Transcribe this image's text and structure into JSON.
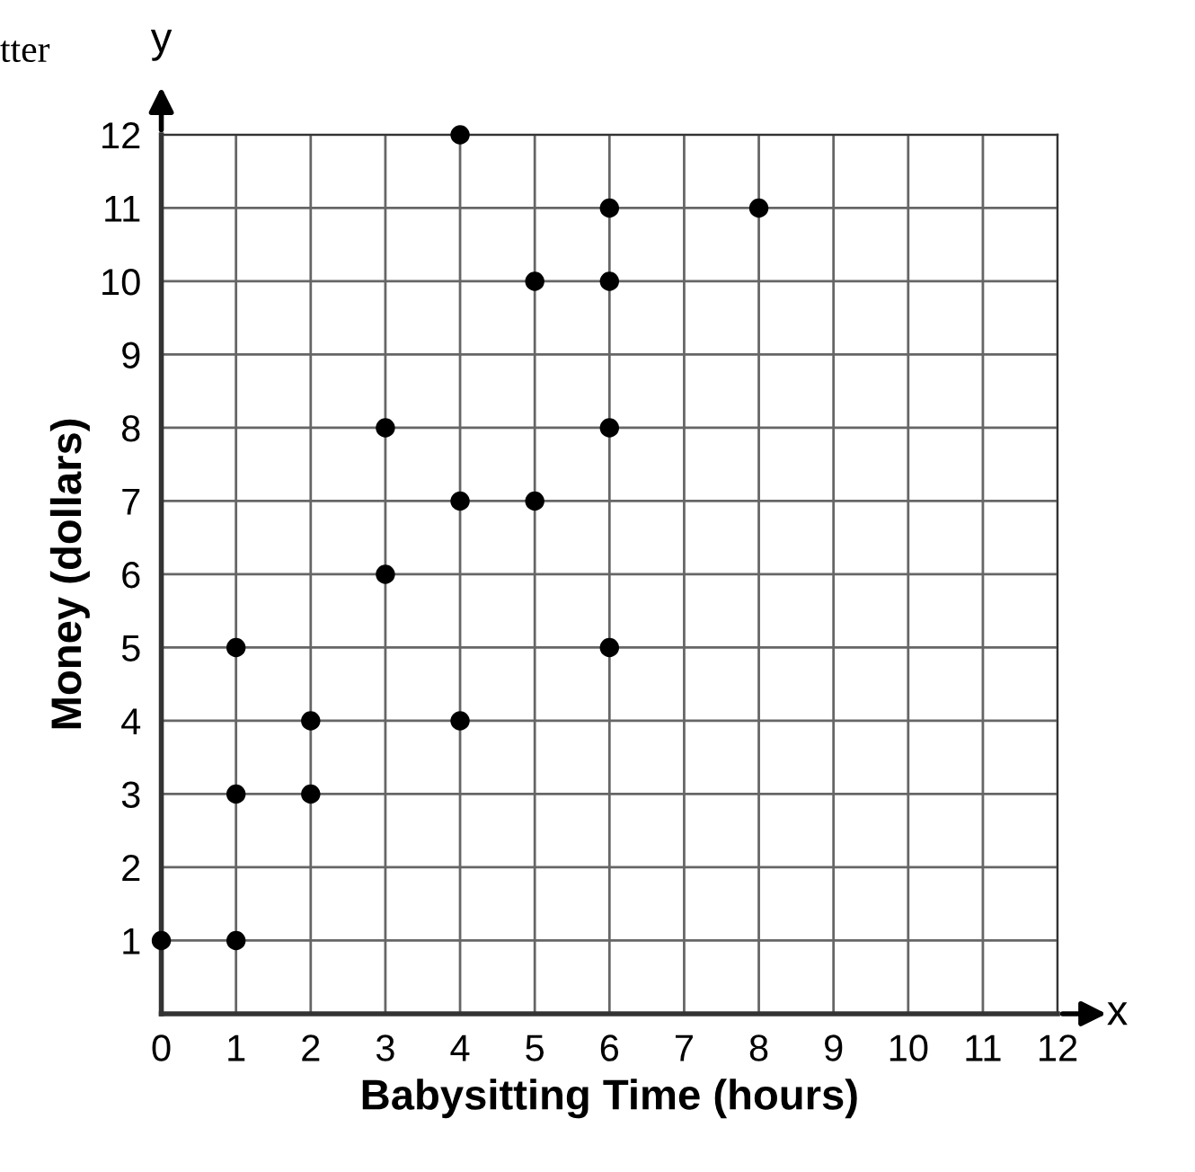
{
  "chart_data": {
    "type": "scatter",
    "xlabel": "Babysitting Time (hours)",
    "ylabel": "Money (dollars)",
    "x": [
      0,
      1,
      1,
      1,
      2,
      2,
      3,
      3,
      4,
      4,
      4,
      5,
      5,
      6,
      6,
      6,
      6,
      8
    ],
    "values": [
      1,
      1,
      3,
      5,
      3,
      4,
      6,
      8,
      4,
      7,
      12,
      7,
      10,
      5,
      8,
      10,
      11,
      11
    ],
    "color": "#000000",
    "marker": "circle",
    "xlim": [
      0,
      12
    ],
    "ylim": [
      0,
      12
    ],
    "xticks": [
      0,
      1,
      2,
      3,
      4,
      5,
      6,
      7,
      8,
      9,
      10,
      11,
      12
    ],
    "yticks": [
      {
        "value": 0,
        "label": null
      },
      1,
      2,
      3,
      4,
      5,
      6,
      7,
      8,
      9,
      10,
      11,
      12
    ],
    "grid": true,
    "annotations": [
      "tter",
      "x",
      "y"
    ]
  }
}
